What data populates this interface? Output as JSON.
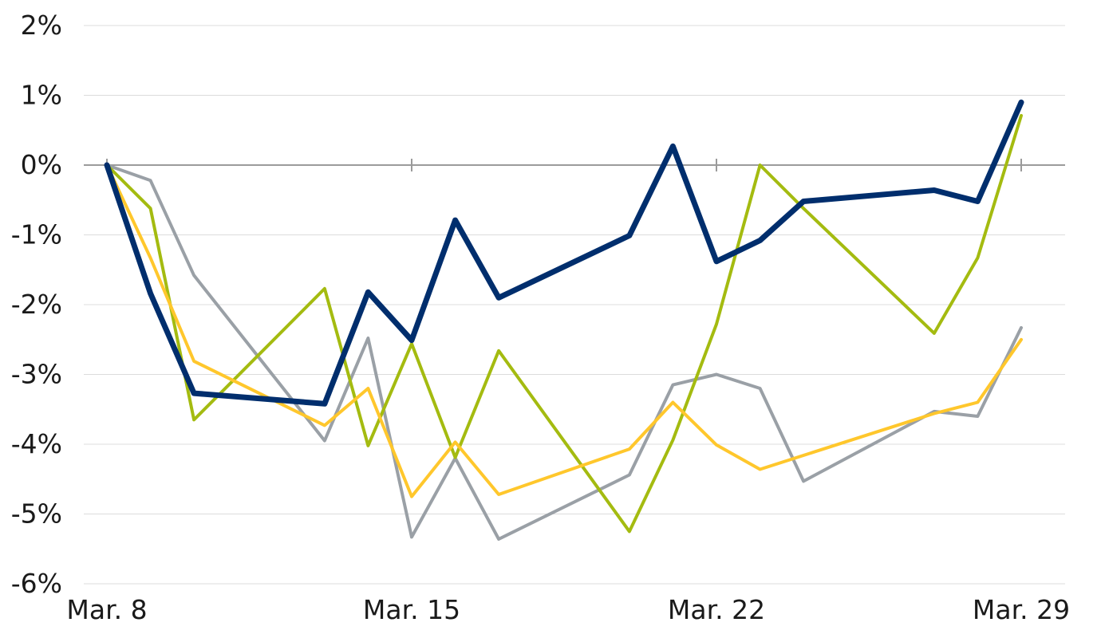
{
  "chart_data": {
    "type": "line",
    "title": "",
    "xlabel": "",
    "ylabel": "",
    "ylim": [
      -6,
      2
    ],
    "yticks": [
      2,
      1,
      0,
      -1,
      -2,
      -3,
      -4,
      -5,
      -6
    ],
    "ytick_labels": [
      "2%",
      "1%",
      "0%",
      "-1%",
      "-2%",
      "-3%",
      "-4%",
      "-5%",
      "-6%"
    ],
    "xlim": [
      "2021-03-08",
      "2021-03-29"
    ],
    "xticks": [
      "2021-03-08",
      "2021-03-15",
      "2021-03-22",
      "2021-03-29"
    ],
    "xtick_labels": [
      "Mar. 8",
      "Mar. 15",
      "Mar. 22",
      "Mar. 29"
    ],
    "grid": true,
    "legend": "none",
    "x": [
      "2021-03-08",
      "2021-03-09",
      "2021-03-10",
      "2021-03-13",
      "2021-03-14",
      "2021-03-15",
      "2021-03-16",
      "2021-03-17",
      "2021-03-20",
      "2021-03-21",
      "2021-03-22",
      "2021-03-23",
      "2021-03-24",
      "2021-03-27",
      "2021-03-28",
      "2021-03-29"
    ],
    "series": [
      {
        "color": "#9aa0a6",
        "width": 4,
        "values": [
          0,
          -0.22,
          -1.58,
          -3.95,
          -2.48,
          -5.33,
          -4.2,
          -5.36,
          -4.44,
          -3.15,
          -3.0,
          -3.2,
          -4.53,
          -3.53,
          -3.6,
          -2.33
        ]
      },
      {
        "color": "#a4bb10",
        "width": 4,
        "values": [
          0,
          -0.62,
          -3.65,
          -1.77,
          -4.02,
          -2.56,
          -4.19,
          -2.66,
          -5.25,
          -3.94,
          -2.28,
          0,
          -0.62,
          -2.41,
          -1.33,
          0.71
        ]
      },
      {
        "color": "#ffc72c",
        "width": 4,
        "values": [
          0,
          -1.33,
          -2.81,
          -3.73,
          -3.2,
          -4.75,
          -3.97,
          -4.72,
          -4.07,
          -3.4,
          -4.01,
          -4.36,
          -4.16,
          -3.56,
          -3.4,
          -2.5
        ]
      },
      {
        "color": "#002e6d",
        "width": 7,
        "values": [
          0,
          -1.84,
          -3.27,
          -3.42,
          -1.82,
          -2.51,
          -0.79,
          -1.9,
          -1.01,
          0.27,
          -1.38,
          -1.08,
          -0.52,
          -0.36,
          -0.52,
          0.9
        ]
      }
    ]
  }
}
